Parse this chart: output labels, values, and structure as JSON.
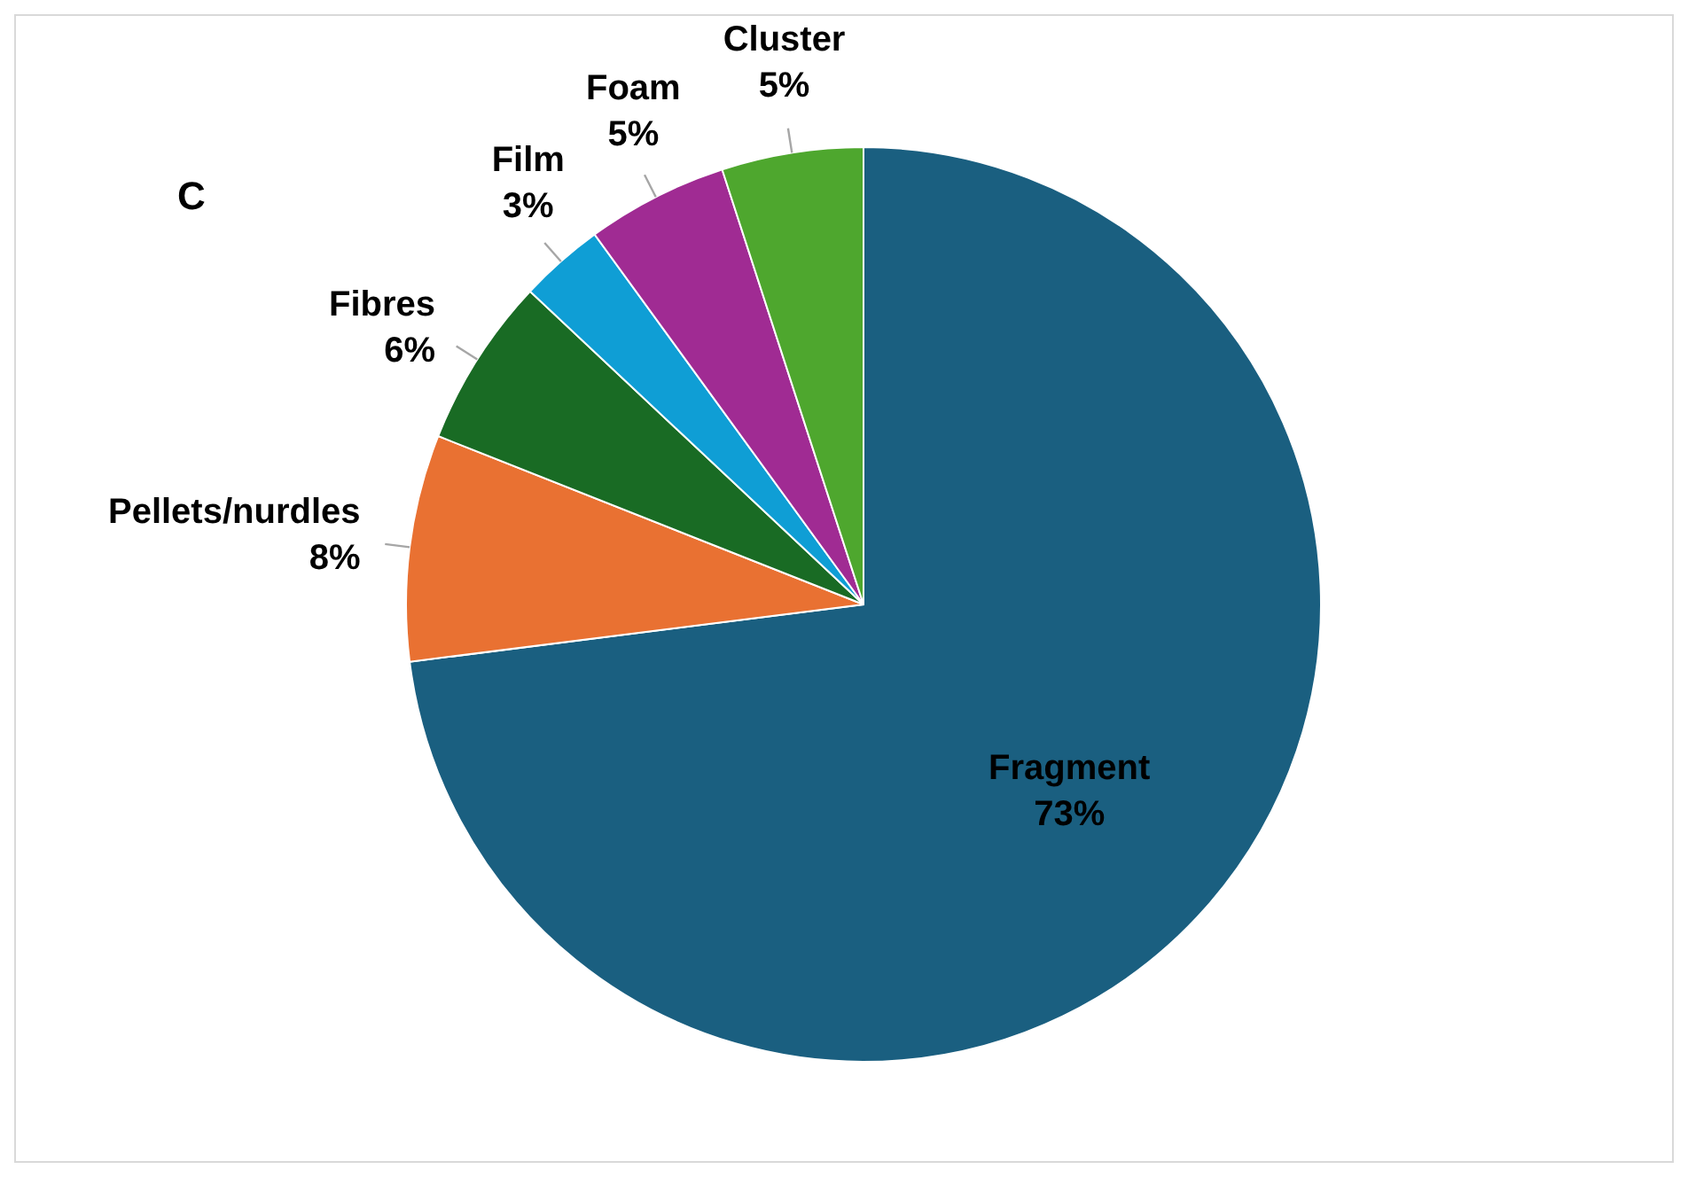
{
  "chart_data": {
    "type": "pie",
    "title": "C",
    "categories": [
      "Fragment",
      "Pellets/nurdles",
      "Fibres",
      "Film",
      "Foam",
      "Cluster"
    ],
    "values": [
      73,
      8,
      6,
      3,
      5,
      5
    ],
    "value_labels": [
      "73%",
      "8%",
      "6%",
      "3%",
      "5%",
      "5%"
    ],
    "colors": [
      "#1a5f80",
      "#e97132",
      "#196b24",
      "#0f9ed5",
      "#a02b93",
      "#4ea72e"
    ]
  }
}
